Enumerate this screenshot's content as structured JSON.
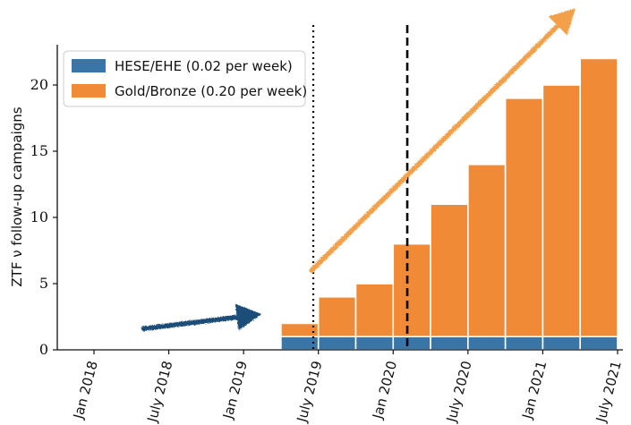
{
  "chart_data": {
    "type": "bar",
    "title": "",
    "ylabel": "ZTF ν follow-up campaigns",
    "xlabel": "",
    "ylim": [
      0,
      23
    ],
    "yticks": [
      0,
      5,
      10,
      15,
      20
    ],
    "x_tick_labels": [
      "Jan 2018",
      "July 2018",
      "Jan 2019",
      "July 2019",
      "Jan 2020",
      "July 2020",
      "Jan 2021",
      "July 2021"
    ],
    "x_tick_dates": [
      "2018-01",
      "2018-07",
      "2019-01",
      "2019-07",
      "2020-01",
      "2020-07",
      "2021-01",
      "2021-07"
    ],
    "stacked": true,
    "bin_starts": [
      "2019-04",
      "2019-07",
      "2019-10",
      "2020-01",
      "2020-04",
      "2020-07",
      "2020-10",
      "2021-01",
      "2021-04"
    ],
    "series": [
      {
        "name": "HESE/EHE (0.02 per week)",
        "color": "#3a75a8",
        "values": [
          1,
          1,
          1,
          1,
          1,
          1,
          1,
          1,
          1
        ]
      },
      {
        "name": "Gold/Bronze (0.20 per week)",
        "color": "#f08a36",
        "values": [
          1,
          3,
          4,
          7,
          10,
          13,
          18,
          19,
          21
        ]
      }
    ],
    "vlines": [
      {
        "date": "2019-06-19",
        "style": "dotted",
        "color": "#000000"
      },
      {
        "date": "2020-02-05",
        "style": "dashed",
        "color": "#000000"
      }
    ],
    "arrows": [
      {
        "color": "#1f4e79",
        "from": {
          "date": "2018-05-01",
          "y": 1.6
        },
        "to": {
          "date": "2019-02-15",
          "y": 2.7
        }
      },
      {
        "color": "#f2a04a",
        "from": {
          "date": "2019-06-15",
          "y": 6.0
        },
        "to": {
          "date": "2021-03-20",
          "y": 25.8
        }
      }
    ],
    "legend_position": "top-left",
    "grid": false
  }
}
